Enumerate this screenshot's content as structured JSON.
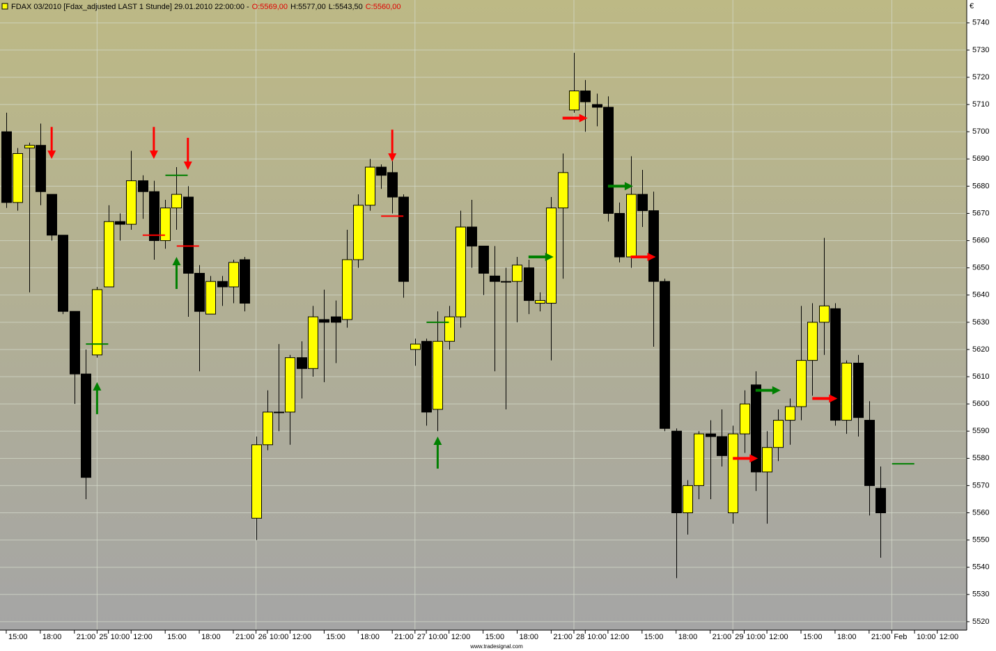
{
  "chart_data": {
    "type": "candlestick",
    "title": "FDAX 03/2010 [Fdax_adjusted LAST 1 Stunde] 29.01.2010 22:00:00 -",
    "header_values": [
      "O:5569,00",
      "H:5577,00",
      "L:5543,50",
      "C:5560,00"
    ],
    "header_colors": [
      "#e00000",
      "#000000",
      "#000000",
      "#e00000"
    ],
    "currency": "€",
    "watermark": "www.tradesignal.com",
    "up_color": "#ffff00",
    "down_color": "#000000",
    "open": [
      5700,
      5674,
      5694,
      5695,
      5677,
      5662,
      5634,
      5611,
      5618,
      5643,
      5667,
      5666,
      5682,
      5678,
      5660,
      5672,
      5676,
      5648,
      5633,
      5645,
      5643,
      5653,
      5558,
      5585,
      5597,
      5597,
      5617,
      5613,
      5631,
      5632,
      5631,
      5653,
      5673,
      5687,
      5685,
      5676,
      5620,
      5623,
      5598,
      5623,
      5632,
      5665,
      5658,
      5647,
      5645,
      5645,
      5650,
      5637,
      5637,
      5672,
      5708,
      5715,
      5710,
      5709,
      5670,
      5654,
      5677,
      5671,
      5645,
      5590,
      5560,
      5570,
      5589,
      5588,
      5560,
      5589,
      5607,
      5575,
      5584,
      5594,
      5599,
      5616,
      5630,
      5635,
      5594,
      5615,
      5594,
      5569
    ],
    "high": [
      5707,
      5694,
      5696,
      5703,
      5677,
      5662,
      5634,
      5620,
      5643,
      5673,
      5670,
      5693,
      5684,
      5682,
      5675,
      5687,
      5680,
      5651,
      5647,
      5647,
      5653,
      5654,
      5588,
      5605,
      5622,
      5618,
      5623,
      5636,
      5642,
      5638,
      5664,
      5677,
      5690,
      5688,
      5690,
      5677,
      5624,
      5624,
      5634,
      5636,
      5671,
      5675,
      5658,
      5658,
      5650,
      5654,
      5653,
      5641,
      5676,
      5692,
      5729,
      5719,
      5714,
      5713,
      5674,
      5691,
      5686,
      5678,
      5646,
      5591,
      5572,
      5590,
      5594,
      5598,
      5592,
      5605,
      5612,
      5590,
      5598,
      5602,
      5636,
      5637,
      5661,
      5637,
      5616,
      5618,
      5601,
      5577
    ],
    "low": [
      5672,
      5671,
      5641,
      5673,
      5660,
      5633,
      5600,
      5565,
      5617,
      5643,
      5660,
      5664,
      5668,
      5653,
      5657,
      5664,
      5632,
      5612,
      5633,
      5636,
      5637,
      5634,
      5550,
      5583,
      5590,
      5585,
      5602,
      5610,
      5608,
      5615,
      5628,
      5650,
      5671,
      5679,
      5670,
      5639,
      5614,
      5592,
      5590,
      5620,
      5628,
      5650,
      5640,
      5612,
      5598,
      5630,
      5633,
      5634,
      5616,
      5646,
      5707,
      5700,
      5702,
      5667,
      5652,
      5650,
      5665,
      5621,
      5590,
      5536,
      5552,
      5565,
      5565,
      5577,
      5556,
      5582,
      5568,
      5556,
      5579,
      5585,
      5594,
      5603,
      5618,
      5592,
      5589,
      5588,
      5559,
      5543.5
    ],
    "close": [
      5674,
      5692,
      5695,
      5678,
      5662,
      5634,
      5611,
      5573,
      5642,
      5667,
      5666,
      5682,
      5678,
      5660,
      5672,
      5677,
      5648,
      5634,
      5645,
      5643,
      5652,
      5637,
      5585,
      5597,
      5597,
      5617,
      5613,
      5632,
      5630,
      5630,
      5653,
      5673,
      5687,
      5684,
      5676,
      5645,
      5622,
      5597,
      5623,
      5632,
      5665,
      5658,
      5648,
      5645,
      5645,
      5651,
      5638,
      5638,
      5672,
      5685,
      5715,
      5711,
      5709,
      5670,
      5654,
      5677,
      5671,
      5645,
      5591,
      5560,
      5570,
      5589,
      5588,
      5581,
      5589,
      5600,
      5575,
      5584,
      5594,
      5599,
      5616,
      5630,
      5636,
      5594,
      5615,
      5595,
      5570,
      5560
    ],
    "signals": [
      {
        "kind": "down",
        "index": 4,
        "price": 5690,
        "color": "#ff0000"
      },
      {
        "kind": "up",
        "index": 8,
        "price": 5608,
        "color": "#008000"
      },
      {
        "kind": "level",
        "index": 8,
        "price": 5622,
        "color": "#008000"
      },
      {
        "kind": "down",
        "index": 13,
        "price": 5690,
        "color": "#ff0000"
      },
      {
        "kind": "level",
        "index": 13,
        "price": 5662,
        "color": "#ff0000"
      },
      {
        "kind": "up",
        "index": 15,
        "price": 5654,
        "color": "#008000"
      },
      {
        "kind": "level",
        "index": 15,
        "price": 5684,
        "color": "#008000"
      },
      {
        "kind": "down",
        "index": 16,
        "price": 5686,
        "color": "#ff0000"
      },
      {
        "kind": "level",
        "index": 16,
        "price": 5658,
        "color": "#ff0000"
      },
      {
        "kind": "down",
        "index": 34,
        "price": 5689,
        "color": "#ff0000"
      },
      {
        "kind": "level",
        "index": 34,
        "price": 5669,
        "color": "#ff0000"
      },
      {
        "kind": "up",
        "index": 38,
        "price": 5588,
        "color": "#008000"
      },
      {
        "kind": "level",
        "index": 38,
        "price": 5630,
        "color": "#008000"
      },
      {
        "kind": "right",
        "index": 46,
        "price": 5654,
        "color": "#008000"
      },
      {
        "kind": "right",
        "index": 49,
        "price": 5705,
        "color": "#ff0000"
      },
      {
        "kind": "right",
        "index": 53,
        "price": 5680,
        "color": "#008000"
      },
      {
        "kind": "right",
        "index": 55,
        "price": 5654,
        "color": "#ff0000"
      },
      {
        "kind": "right",
        "index": 64,
        "price": 5580,
        "color": "#ff0000"
      },
      {
        "kind": "right",
        "index": 66,
        "price": 5605,
        "color": "#008000"
      },
      {
        "kind": "right",
        "index": 71,
        "price": 5602,
        "color": "#ff0000"
      },
      {
        "kind": "level",
        "index": 79,
        "price": 5578,
        "color": "#008000"
      }
    ],
    "xlim": [
      -0.55,
      84.6
    ],
    "xticks": [
      {
        "value": 0,
        "label": "15:00"
      },
      {
        "value": 3,
        "label": "18:00"
      },
      {
        "value": 6,
        "label": "21:00"
      },
      {
        "value": 8,
        "label": "25"
      },
      {
        "value": 9,
        "label": "10:00"
      },
      {
        "value": 11,
        "label": "12:00"
      },
      {
        "value": 14,
        "label": "15:00"
      },
      {
        "value": 17,
        "label": "18:00"
      },
      {
        "value": 20,
        "label": "21:00"
      },
      {
        "value": 22,
        "label": "26"
      },
      {
        "value": 23,
        "label": "10:00"
      },
      {
        "value": 25,
        "label": "12:00"
      },
      {
        "value": 28,
        "label": "15:00"
      },
      {
        "value": 31,
        "label": "18:00"
      },
      {
        "value": 34,
        "label": "21:00"
      },
      {
        "value": 36,
        "label": "27"
      },
      {
        "value": 37,
        "label": "10:00"
      },
      {
        "value": 39,
        "label": "12:00"
      },
      {
        "value": 42,
        "label": "15:00"
      },
      {
        "value": 45,
        "label": "18:00"
      },
      {
        "value": 48,
        "label": "21:00"
      },
      {
        "value": 50,
        "label": "28"
      },
      {
        "value": 51,
        "label": "10:00"
      },
      {
        "value": 53,
        "label": "12:00"
      },
      {
        "value": 56,
        "label": "15:00"
      },
      {
        "value": 59,
        "label": "18:00"
      },
      {
        "value": 62,
        "label": "21:00"
      },
      {
        "value": 64,
        "label": "29"
      },
      {
        "value": 65,
        "label": "10:00"
      },
      {
        "value": 67,
        "label": "12:00"
      },
      {
        "value": 70,
        "label": "15:00"
      },
      {
        "value": 73,
        "label": "18:00"
      },
      {
        "value": 76,
        "label": "21:00"
      },
      {
        "value": 78,
        "label": "Feb"
      },
      {
        "value": 80,
        "label": "10:00"
      },
      {
        "value": 82,
        "label": "12:00"
      }
    ],
    "xgrid": [
      8,
      22,
      36,
      50,
      64,
      78
    ],
    "ylim": [
      5516.9,
      5748.4
    ],
    "yticks": [
      5520,
      5530,
      5540,
      5550,
      5560,
      5570,
      5580,
      5590,
      5600,
      5610,
      5620,
      5630,
      5640,
      5650,
      5660,
      5670,
      5680,
      5690,
      5700,
      5710,
      5720,
      5730,
      5740
    ],
    "grid": true
  }
}
